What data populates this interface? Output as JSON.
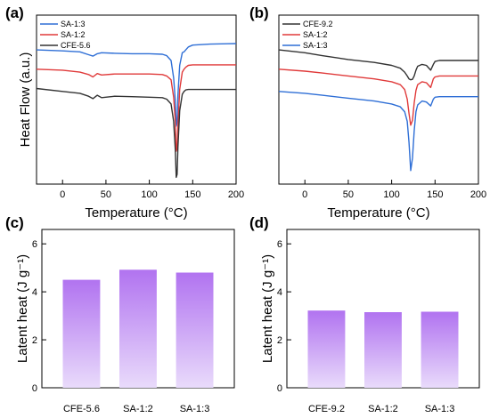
{
  "chart_data": [
    {
      "panel": "(a)",
      "type": "line",
      "xlabel": "Temperature (°C)",
      "ylabel": "Heat Flow (a.u.)",
      "xlim": [
        -30,
        200
      ],
      "xticks": [
        0,
        50,
        100,
        150,
        200
      ],
      "yticks": [],
      "grid": false,
      "legend_position": "top-left",
      "series": [
        {
          "name": "SA-1:3",
          "color": "#2f6fd6",
          "x": [
            -30,
            0,
            20,
            30,
            35,
            40,
            45,
            60,
            80,
            100,
            115,
            120,
            125,
            128,
            130,
            131,
            132,
            133,
            135,
            138,
            140,
            142,
            145,
            150,
            170,
            200
          ],
          "y": [
            8.9,
            8.8,
            8.7,
            8.4,
            8.25,
            8.5,
            8.6,
            8.55,
            8.5,
            8.5,
            8.45,
            8.3,
            7.8,
            6.0,
            3.6,
            1.0,
            1.4,
            4.2,
            7.3,
            8.6,
            8.7,
            8.9,
            9.2,
            9.4,
            9.5,
            9.55
          ]
        },
        {
          "name": "SA-1:2",
          "color": "#e03a3a",
          "x": [
            -30,
            0,
            20,
            30,
            35,
            40,
            45,
            60,
            80,
            100,
            115,
            120,
            125,
            128,
            130,
            131,
            132,
            133,
            135,
            138,
            140,
            142,
            145,
            150,
            170,
            200
          ],
          "y": [
            6.9,
            6.8,
            6.6,
            6.35,
            6.1,
            6.45,
            6.3,
            6.4,
            6.4,
            6.4,
            6.35,
            6.2,
            5.8,
            4.0,
            1.5,
            -1.6,
            -1.3,
            1.0,
            4.8,
            6.6,
            6.9,
            7.1,
            7.3,
            7.35,
            7.35,
            7.35
          ]
        },
        {
          "name": "CFE-5.6",
          "color": "#333333",
          "x": [
            -30,
            0,
            20,
            30,
            35,
            40,
            45,
            60,
            80,
            100,
            115,
            120,
            125,
            128,
            130,
            131,
            132,
            133,
            135,
            138,
            140,
            142,
            145,
            150,
            170,
            200
          ],
          "y": [
            4.9,
            4.6,
            4.4,
            4.1,
            3.85,
            4.2,
            3.95,
            4.1,
            4.05,
            4.0,
            3.95,
            3.8,
            3.3,
            1.5,
            -1.5,
            -4.3,
            -4.0,
            -1.2,
            2.6,
            4.3,
            4.6,
            4.75,
            4.8,
            4.8,
            4.8,
            4.8
          ]
        }
      ]
    },
    {
      "panel": "(b)",
      "type": "line",
      "xlabel": "Temperature (°C)",
      "ylabel": "",
      "xlim": [
        -30,
        200
      ],
      "xticks": [
        0,
        50,
        100,
        150,
        200
      ],
      "yticks": [],
      "grid": false,
      "legend_position": "top-left",
      "series": [
        {
          "name": "CFE-9.2",
          "color": "#333333",
          "x": [
            -30,
            0,
            20,
            50,
            80,
            100,
            110,
            115,
            118,
            120,
            122,
            124,
            126,
            128,
            130,
            135,
            140,
            145,
            148,
            150,
            155,
            170,
            200
          ],
          "y": [
            8.9,
            8.6,
            8.3,
            7.9,
            7.6,
            7.3,
            7.0,
            6.6,
            6.2,
            5.9,
            5.8,
            5.85,
            6.2,
            6.8,
            7.2,
            7.4,
            7.3,
            6.8,
            7.4,
            7.7,
            7.8,
            7.8,
            7.8
          ]
        },
        {
          "name": "SA-1:2",
          "color": "#e03a3a",
          "x": [
            -30,
            0,
            20,
            50,
            80,
            100,
            110,
            115,
            118,
            120,
            122,
            124,
            126,
            128,
            130,
            135,
            140,
            145,
            148,
            150,
            155,
            170,
            200
          ],
          "y": [
            6.9,
            6.7,
            6.5,
            6.2,
            5.9,
            5.6,
            5.3,
            4.8,
            3.8,
            2.3,
            1.1,
            1.6,
            3.4,
            4.7,
            5.3,
            5.6,
            5.5,
            5.0,
            5.9,
            6.1,
            6.2,
            6.2,
            6.2
          ]
        },
        {
          "name": "SA-1:3",
          "color": "#2f6fd6",
          "x": [
            -30,
            0,
            20,
            50,
            80,
            100,
            110,
            115,
            118,
            120,
            122,
            124,
            126,
            128,
            130,
            135,
            140,
            145,
            148,
            150,
            155,
            170,
            200
          ],
          "y": [
            4.6,
            4.4,
            4.2,
            3.9,
            3.6,
            3.3,
            3.0,
            2.5,
            1.5,
            -0.7,
            -3.6,
            -2.3,
            0.5,
            2.5,
            3.2,
            3.6,
            3.5,
            3.1,
            3.8,
            4.0,
            4.05,
            4.05,
            4.05
          ]
        }
      ]
    },
    {
      "panel": "(c)",
      "type": "bar",
      "categories": [
        "CFE-5.6",
        "SA-1:2",
        "SA-1:3"
      ],
      "values": [
        4.5,
        4.92,
        4.8
      ],
      "ylabel": "Latent heat (J g⁻¹)",
      "ylim": [
        0,
        6.6
      ],
      "yticks": [
        0,
        2,
        4,
        6
      ],
      "grid": false,
      "color_top": "#b173f0",
      "color_bottom": "#e9dbfb"
    },
    {
      "panel": "(d)",
      "type": "bar",
      "categories": [
        "CFE-9.2",
        "SA-1:2",
        "SA-1:3"
      ],
      "values": [
        3.22,
        3.15,
        3.17
      ],
      "ylabel": "Latent heat (J g⁻¹)",
      "ylim": [
        0,
        6.6
      ],
      "yticks": [
        0,
        2,
        4,
        6
      ],
      "grid": false,
      "color_top": "#b173f0",
      "color_bottom": "#e9dbfb"
    }
  ]
}
